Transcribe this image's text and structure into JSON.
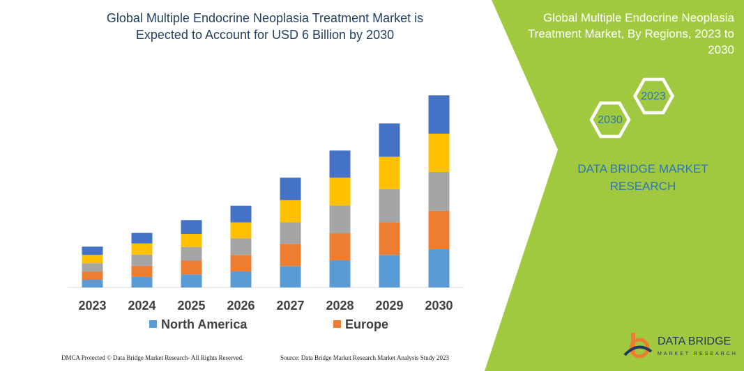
{
  "chart_data": {
    "type": "bar",
    "stacked": true,
    "title": "Global Multiple Endocrine Neoplasia Treatment Market is Expected to Account for USD 6 Billion by 2030",
    "categories": [
      "2023",
      "2024",
      "2025",
      "2026",
      "2027",
      "2028",
      "2029",
      "2030"
    ],
    "series": [
      {
        "name": "North America",
        "color": "#5b9bd5",
        "values": [
          0.24,
          0.33,
          0.41,
          0.5,
          0.67,
          0.85,
          1.02,
          1.2
        ]
      },
      {
        "name": "Europe",
        "color": "#ed7d31",
        "values": [
          0.26,
          0.35,
          0.43,
          0.52,
          0.7,
          0.85,
          1.02,
          1.2
        ]
      },
      {
        "color": "#a5a5a5",
        "values": [
          0.26,
          0.35,
          0.43,
          0.52,
          0.67,
          0.87,
          1.04,
          1.22
        ]
      },
      {
        "color": "#ffc000",
        "values": [
          0.26,
          0.35,
          0.41,
          0.5,
          0.7,
          0.87,
          1.02,
          1.2
        ]
      },
      {
        "color": "#4472c4",
        "values": [
          0.26,
          0.33,
          0.43,
          0.52,
          0.7,
          0.85,
          1.04,
          1.2
        ]
      }
    ]
  },
  "side_panel": {
    "title": "Global Multiple Endocrine Neoplasia Treatment Market, By Regions, 2023 to 2030",
    "hexagons": [
      "2023",
      "2030"
    ],
    "brand": "DATA BRIDGE MARKET RESEARCH"
  },
  "logo": {
    "name": "DATA BRIDGE",
    "tagline": "MARKET RESEARCH"
  },
  "footer": {
    "left": "DMCA Protected © Data Bridge Market Research-  All Rights Reserved.",
    "right": "Source: Data Bridge Market Research  Market Analysis Study 2023"
  }
}
